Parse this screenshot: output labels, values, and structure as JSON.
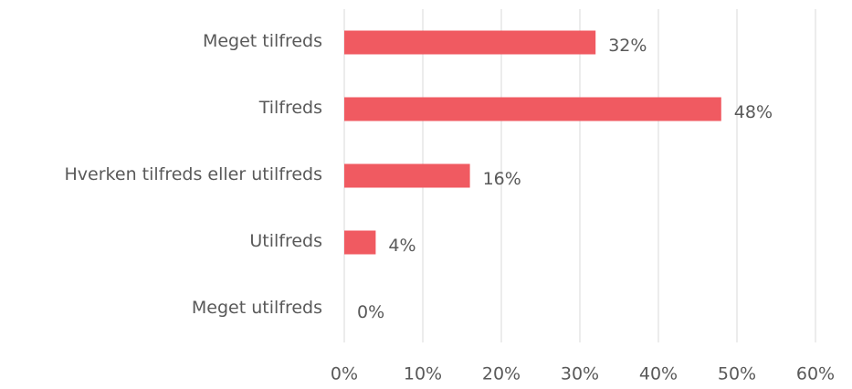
{
  "chart_data": {
    "type": "bar",
    "orientation": "horizontal",
    "categories": [
      "Meget tilfreds",
      "Tilfreds",
      "Hverken tilfreds eller utilfreds",
      "Utilfreds",
      "Meget utilfreds"
    ],
    "values": [
      32,
      48,
      16,
      4,
      0
    ],
    "value_labels": [
      "32%",
      "48%",
      "16%",
      "4%",
      "0%"
    ],
    "color": "#f05a61",
    "xlim": [
      0,
      60
    ],
    "xticks": [
      {
        "value": 0,
        "label": "0%"
      },
      {
        "value": 10,
        "label": "10%"
      },
      {
        "value": 20,
        "label": "20%"
      },
      {
        "value": 30,
        "label": "30%"
      },
      {
        "value": 40,
        "label": "40%"
      },
      {
        "value": 50,
        "label": "50%"
      },
      {
        "value": 60,
        "label": "60%"
      }
    ],
    "grid": true
  }
}
